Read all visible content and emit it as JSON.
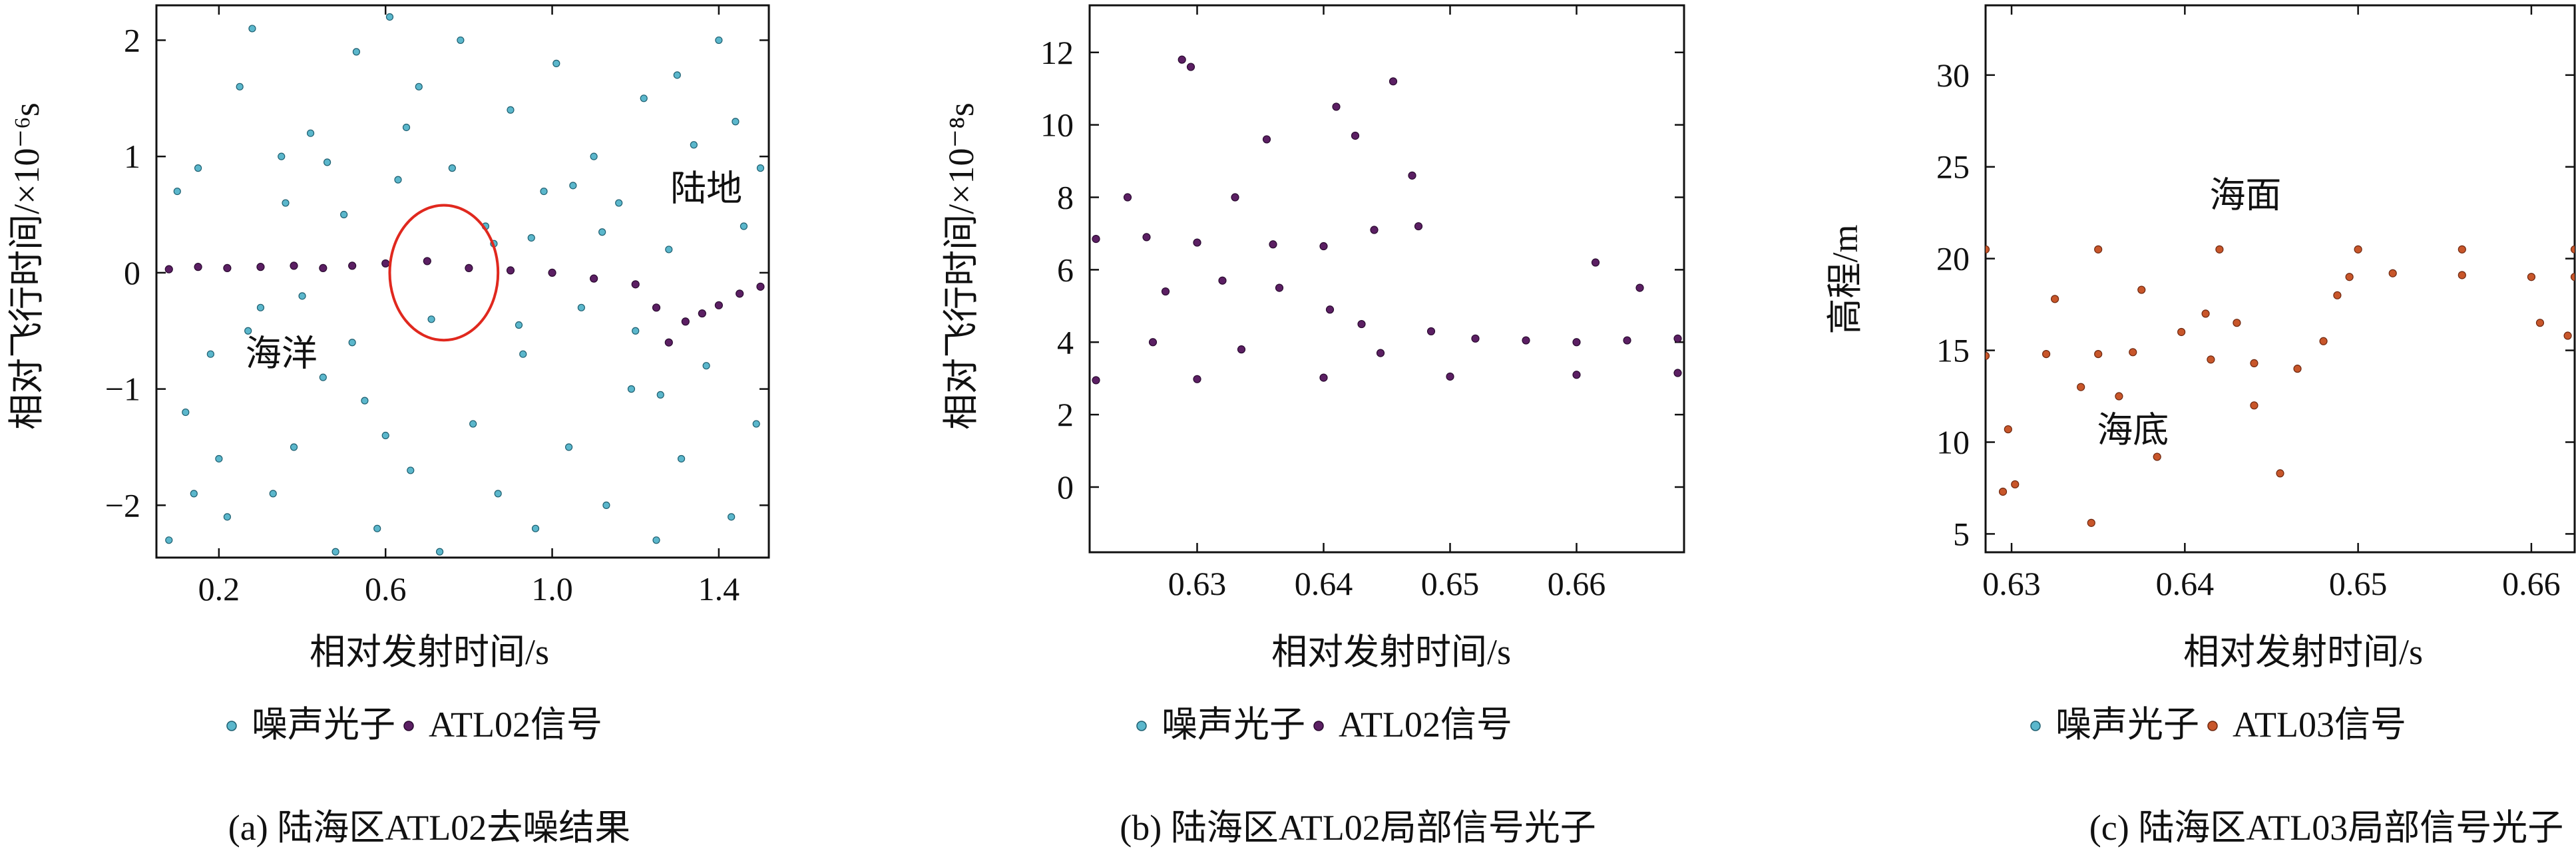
{
  "colors": {
    "noise": "#5bb7cc",
    "noise_edge": "#1e5f70",
    "atl02": "#5b1f63",
    "atl03": "#c8562a",
    "atl03_edge": "#6e2810",
    "circle": "#e0281e",
    "axis": "#111111"
  },
  "chart_data": [
    {
      "type": "scatter",
      "xlabel": "相对发射时间/s",
      "ylabel": "相对飞行时间/×10⁻⁶s",
      "xlim": [
        0.05,
        1.52
      ],
      "ylim": [
        -2.45,
        2.3
      ],
      "xticks": [
        0.2,
        0.6,
        1.0,
        1.4
      ],
      "xtick_labels": [
        "0.2",
        "0.6",
        "1.0",
        "1.4"
      ],
      "yticks": [
        -2,
        -1,
        0,
        1,
        2
      ],
      "ytick_labels": [
        "−2",
        "−1",
        "0",
        "1",
        "2"
      ],
      "grid": false,
      "annotations": [
        {
          "text": "海洋",
          "x": 0.35,
          "y": -0.8
        },
        {
          "text": "陆地",
          "x": 1.37,
          "y": 0.62
        }
      ],
      "highlight_circle": {
        "x": 0.74,
        "y": 0.0,
        "radius_x": 0.13,
        "radius_y": 0.58
      },
      "series": [
        {
          "name": "噪声光子",
          "role": "noise",
          "points": [
            [
              0.08,
              -2.3
            ],
            [
              0.12,
              -1.2
            ],
            [
              0.15,
              0.9
            ],
            [
              0.18,
              -0.7
            ],
            [
              0.22,
              -2.1
            ],
            [
              0.25,
              1.6
            ],
            [
              0.28,
              2.1
            ],
            [
              0.3,
              -0.3
            ],
            [
              0.33,
              -1.9
            ],
            [
              0.36,
              0.6
            ],
            [
              0.38,
              -1.5
            ],
            [
              0.42,
              1.2
            ],
            [
              0.45,
              -0.9
            ],
            [
              0.48,
              -2.4
            ],
            [
              0.5,
              0.5
            ],
            [
              0.53,
              1.9
            ],
            [
              0.55,
              -1.1
            ],
            [
              0.58,
              -2.2
            ],
            [
              0.61,
              2.2
            ],
            [
              0.63,
              0.8
            ],
            [
              0.66,
              -1.7
            ],
            [
              0.68,
              1.6
            ],
            [
              0.71,
              -0.4
            ],
            [
              0.73,
              -2.4
            ],
            [
              0.76,
              0.9
            ],
            [
              0.78,
              2.0
            ],
            [
              0.81,
              -1.3
            ],
            [
              0.84,
              0.4
            ],
            [
              0.87,
              -1.9
            ],
            [
              0.9,
              1.4
            ],
            [
              0.93,
              -0.7
            ],
            [
              0.96,
              -2.2
            ],
            [
              0.98,
              0.7
            ],
            [
              1.01,
              1.8
            ],
            [
              1.04,
              -1.5
            ],
            [
              1.07,
              -0.3
            ],
            [
              1.1,
              1.0
            ],
            [
              1.13,
              -2.0
            ],
            [
              1.16,
              0.6
            ],
            [
              1.19,
              -1.0
            ],
            [
              1.22,
              1.5
            ],
            [
              1.25,
              -2.3
            ],
            [
              1.28,
              0.2
            ],
            [
              1.31,
              -1.6
            ],
            [
              1.34,
              1.1
            ],
            [
              1.37,
              -0.8
            ],
            [
              1.4,
              2.0
            ],
            [
              1.43,
              -2.1
            ],
            [
              1.46,
              0.4
            ],
            [
              1.49,
              -1.3
            ],
            [
              0.1,
              0.7
            ],
            [
              0.2,
              -1.6
            ],
            [
              0.27,
              -0.5
            ],
            [
              0.4,
              -0.2
            ],
            [
              0.52,
              -0.6
            ],
            [
              0.6,
              -1.4
            ],
            [
              0.86,
              0.25
            ],
            [
              0.95,
              0.3
            ],
            [
              1.12,
              0.35
            ],
            [
              1.2,
              -0.5
            ],
            [
              1.3,
              1.7
            ],
            [
              1.44,
              1.3
            ],
            [
              0.14,
              -1.9
            ],
            [
              0.35,
              1.0
            ],
            [
              0.46,
              0.95
            ],
            [
              0.65,
              1.25
            ],
            [
              0.92,
              -0.45
            ],
            [
              1.05,
              0.75
            ],
            [
              1.26,
              -1.05
            ],
            [
              1.5,
              0.9
            ]
          ]
        },
        {
          "name": "ATL02信号",
          "role": "signal",
          "points": [
            [
              0.08,
              0.03
            ],
            [
              0.15,
              0.05
            ],
            [
              0.22,
              0.04
            ],
            [
              0.3,
              0.05
            ],
            [
              0.38,
              0.06
            ],
            [
              0.45,
              0.04
            ],
            [
              0.52,
              0.06
            ],
            [
              0.6,
              0.08
            ],
            [
              0.7,
              0.1
            ],
            [
              0.8,
              0.04
            ],
            [
              0.9,
              0.02
            ],
            [
              1.0,
              0.0
            ],
            [
              1.1,
              -0.05
            ],
            [
              1.2,
              -0.1
            ],
            [
              1.25,
              -0.3
            ],
            [
              1.28,
              -0.6
            ],
            [
              1.32,
              -0.42
            ],
            [
              1.36,
              -0.35
            ],
            [
              1.4,
              -0.28
            ],
            [
              1.45,
              -0.18
            ],
            [
              1.5,
              -0.12
            ]
          ]
        }
      ]
    },
    {
      "type": "scatter",
      "xlabel": "相对发射时间/s",
      "ylabel": "相对飞行时间/×10⁻⁸s",
      "xlim": [
        0.6215,
        0.6685
      ],
      "ylim": [
        -1.8,
        13.3
      ],
      "xticks": [
        0.63,
        0.64,
        0.65,
        0.66
      ],
      "xtick_labels": [
        "0.63",
        "0.64",
        "0.65",
        "0.66"
      ],
      "yticks": [
        0,
        2,
        4,
        6,
        8,
        10,
        12
      ],
      "ytick_labels": [
        "0",
        "2",
        "4",
        "6",
        "8",
        "10",
        "12"
      ],
      "grid": false,
      "series": [
        {
          "name": "ATL02信号",
          "role": "signal",
          "points": [
            [
              0.622,
              2.95
            ],
            [
              0.63,
              2.98
            ],
            [
              0.64,
              3.02
            ],
            [
              0.65,
              3.05
            ],
            [
              0.66,
              3.1
            ],
            [
              0.668,
              3.15
            ],
            [
              0.622,
              6.85
            ],
            [
              0.626,
              6.9
            ],
            [
              0.63,
              6.75
            ],
            [
              0.636,
              6.7
            ],
            [
              0.64,
              6.65
            ],
            [
              0.644,
              7.1
            ],
            [
              0.6475,
              7.2
            ],
            [
              0.6485,
              4.3
            ],
            [
              0.652,
              4.1
            ],
            [
              0.656,
              4.05
            ],
            [
              0.66,
              4.0
            ],
            [
              0.664,
              4.05
            ],
            [
              0.668,
              4.1
            ],
            [
              0.6288,
              11.8
            ],
            [
              0.6295,
              11.6
            ],
            [
              0.641,
              10.5
            ],
            [
              0.6455,
              11.2
            ],
            [
              0.6425,
              9.7
            ],
            [
              0.6355,
              9.6
            ],
            [
              0.647,
              8.6
            ],
            [
              0.633,
              8.0
            ],
            [
              0.632,
              5.7
            ],
            [
              0.6365,
              5.5
            ],
            [
              0.6405,
              4.9
            ],
            [
              0.6245,
              8.0
            ],
            [
              0.6275,
              5.4
            ],
            [
              0.643,
              4.5
            ],
            [
              0.6265,
              4.0
            ],
            [
              0.6335,
              3.8
            ],
            [
              0.6445,
              3.7
            ],
            [
              0.6615,
              6.2
            ],
            [
              0.665,
              5.5
            ]
          ]
        }
      ]
    },
    {
      "type": "scatter",
      "xlabel": "相对发射时间/s",
      "ylabel": "高程/m",
      "xlim": [
        0.6285,
        0.6625
      ],
      "ylim": [
        4.0,
        33.8
      ],
      "xticks": [
        0.63,
        0.64,
        0.65,
        0.66
      ],
      "xtick_labels": [
        "0.63",
        "0.64",
        "0.65",
        "0.66"
      ],
      "yticks": [
        5,
        10,
        15,
        20,
        25,
        30
      ],
      "ytick_labels": [
        "5",
        "10",
        "15",
        "20",
        "25",
        "30"
      ],
      "grid": false,
      "annotations": [
        {
          "text": "海面",
          "x": 0.6435,
          "y": 22.8
        },
        {
          "text": "海底",
          "x": 0.637,
          "y": 10.0
        }
      ],
      "series": [
        {
          "name": "ATL03信号",
          "role": "signal",
          "points": [
            [
              0.6285,
              20.5
            ],
            [
              0.635,
              20.5
            ],
            [
              0.642,
              20.5
            ],
            [
              0.65,
              20.5
            ],
            [
              0.656,
              20.5
            ],
            [
              0.6625,
              20.5
            ],
            [
              0.6285,
              14.7
            ],
            [
              0.632,
              14.8
            ],
            [
              0.635,
              14.8
            ],
            [
              0.637,
              14.9
            ],
            [
              0.6415,
              14.5
            ],
            [
              0.644,
              14.3
            ],
            [
              0.6465,
              14.0
            ],
            [
              0.648,
              15.5
            ],
            [
              0.6488,
              18.0
            ],
            [
              0.6495,
              19.0
            ],
            [
              0.652,
              19.2
            ],
            [
              0.656,
              19.1
            ],
            [
              0.66,
              19.0
            ],
            [
              0.6625,
              19.0
            ],
            [
              0.6295,
              7.3
            ],
            [
              0.6302,
              7.7
            ],
            [
              0.6346,
              5.6
            ],
            [
              0.6298,
              10.7
            ],
            [
              0.6384,
              9.2
            ],
            [
              0.6455,
              8.3
            ],
            [
              0.6362,
              12.5
            ],
            [
              0.644,
              12.0
            ],
            [
              0.6325,
              17.8
            ],
            [
              0.6375,
              18.3
            ],
            [
              0.6412,
              17.0
            ],
            [
              0.643,
              16.5
            ],
            [
              0.6605,
              16.5
            ],
            [
              0.6621,
              15.8
            ],
            [
              0.634,
              13.0
            ],
            [
              0.6398,
              16.0
            ]
          ]
        }
      ]
    }
  ],
  "legends": [
    [
      {
        "label": "噪声光子",
        "color_key": "noise"
      },
      {
        "label": "ATL02信号",
        "color_key": "atl02"
      }
    ],
    [
      {
        "label": "噪声光子",
        "color_key": "noise"
      },
      {
        "label": "ATL02信号",
        "color_key": "atl02"
      }
    ],
    [
      {
        "label": "噪声光子",
        "color_key": "noise"
      },
      {
        "label": "ATL03信号",
        "color_key": "atl03"
      }
    ]
  ],
  "captions": [
    "(a) 陆海区ATL02去噪结果",
    "(b) 陆海区ATL02局部信号光子",
    "(c) 陆海区ATL03局部信号光子"
  ]
}
